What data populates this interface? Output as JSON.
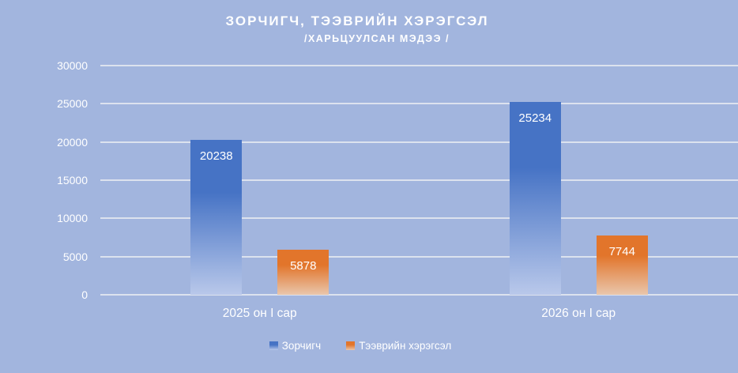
{
  "chart_data": {
    "type": "bar",
    "title": "ЗОРЧИГЧ, ТЭЭВРИЙН ХЭРЭГСЭЛ",
    "subtitle": "/ХАРЬЦУУЛСАН МЭДЭЭ /",
    "categories": [
      "2025 он I сар",
      "2026 он I сар"
    ],
    "series": [
      {
        "name": "Зорчигч",
        "values": [
          20238,
          25234
        ],
        "color_top": "#4673c5",
        "color_bottom": "#b9c8ea"
      },
      {
        "name": "Тээврийн хэрэгсэл",
        "values": [
          5878,
          7744
        ],
        "color_top": "#e2752b",
        "color_bottom": "#e9c6ac"
      }
    ],
    "y_ticks": [
      30000,
      25000,
      20000,
      15000,
      10000,
      5000,
      0
    ],
    "ylim": [
      0,
      30000
    ],
    "grid": true,
    "legend_position": "bottom",
    "data_labels": true,
    "colors": {
      "background": "#a2b5de",
      "gridline": "#dce2ee",
      "text": "#ffffff"
    }
  }
}
